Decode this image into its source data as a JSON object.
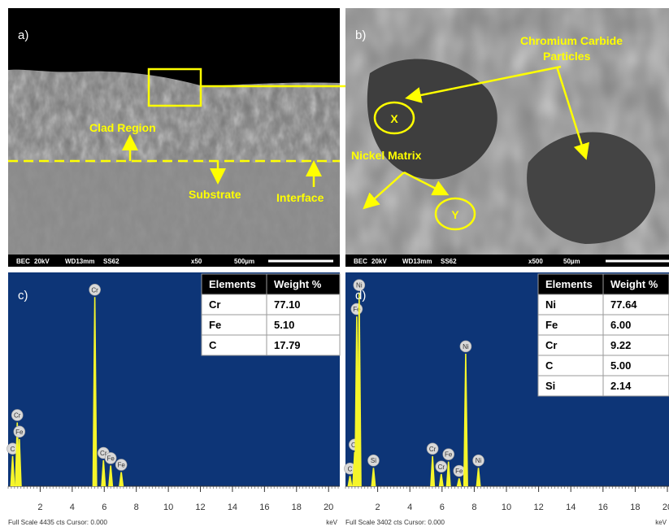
{
  "panels": [
    {
      "label": "a)",
      "annotations": [
        "Clad Region",
        "Substrate",
        "Interface"
      ],
      "info_bar": [
        "BEC",
        "20kV",
        "WD13mm",
        "SS62",
        "x50",
        "500µm"
      ]
    },
    {
      "label": "b)",
      "annotations": [
        "Chromium Carbide",
        "Particles",
        "X",
        "Nickel Matrix",
        "Y"
      ],
      "info_bar": [
        "BEC",
        "20kV",
        "WD13mm",
        "SS62",
        "x500",
        "50µm"
      ]
    }
  ],
  "spectra": [
    {
      "label": "c)",
      "table": {
        "header": [
          "Elements",
          "Weight %"
        ],
        "rows": [
          [
            "Cr",
            "77.10"
          ],
          [
            "Fe",
            "5.10"
          ],
          [
            "C",
            "17.79"
          ]
        ]
      },
      "xlim": [
        0,
        20.7
      ],
      "xticks": [
        2,
        4,
        6,
        8,
        10,
        12,
        14,
        16,
        18,
        20
      ],
      "ylim": [
        0,
        4435
      ],
      "peaks": [
        {
          "element": "C",
          "kev": 0.28,
          "counts": 640
        },
        {
          "element": "Cr",
          "kev": 0.57,
          "counts": 1350
        },
        {
          "element": "Fe",
          "kev": 0.7,
          "counts": 1000
        },
        {
          "element": "Cr",
          "kev": 5.41,
          "counts": 4000
        },
        {
          "element": "Cr",
          "kev": 5.95,
          "counts": 550
        },
        {
          "element": "Fe",
          "kev": 6.4,
          "counts": 440
        },
        {
          "element": "Fe",
          "kev": 7.06,
          "counts": 300
        }
      ],
      "footer": "Full Scale 4435 cts Cursor: 0.000",
      "unit": "keV"
    },
    {
      "label": "d)",
      "table": {
        "header": [
          "Elements",
          "Weight %"
        ],
        "rows": [
          [
            "Ni",
            "77.64"
          ],
          [
            "Fe",
            "6.00"
          ],
          [
            "Cr",
            "9.22"
          ],
          [
            "C",
            "5.00"
          ],
          [
            "Si",
            "2.14"
          ]
        ]
      },
      "xlim": [
        0,
        20.1
      ],
      "xticks": [
        2,
        4,
        6,
        8,
        10,
        12,
        14,
        16,
        18,
        20
      ],
      "ylim": [
        0,
        3402
      ],
      "peaks": [
        {
          "element": "C",
          "kev": 0.28,
          "counts": 168
        },
        {
          "element": "Cr",
          "kev": 0.57,
          "counts": 556
        },
        {
          "element": "Fe",
          "kev": 0.7,
          "counts": 2755
        },
        {
          "element": "Ni",
          "kev": 0.85,
          "counts": 3143
        },
        {
          "element": "Si",
          "kev": 1.74,
          "counts": 300
        },
        {
          "element": "Cr",
          "kev": 5.41,
          "counts": 490
        },
        {
          "element": "Cr",
          "kev": 5.95,
          "counts": 200
        },
        {
          "element": "Fe",
          "kev": 6.4,
          "counts": 400
        },
        {
          "element": "Fe",
          "kev": 7.06,
          "counts": 130
        },
        {
          "element": "Ni",
          "kev": 7.47,
          "counts": 2150
        },
        {
          "element": "Ni",
          "kev": 8.26,
          "counts": 300
        }
      ],
      "footer": "Full Scale 3402 cts Cursor: 0.000",
      "unit": "keV"
    }
  ]
}
